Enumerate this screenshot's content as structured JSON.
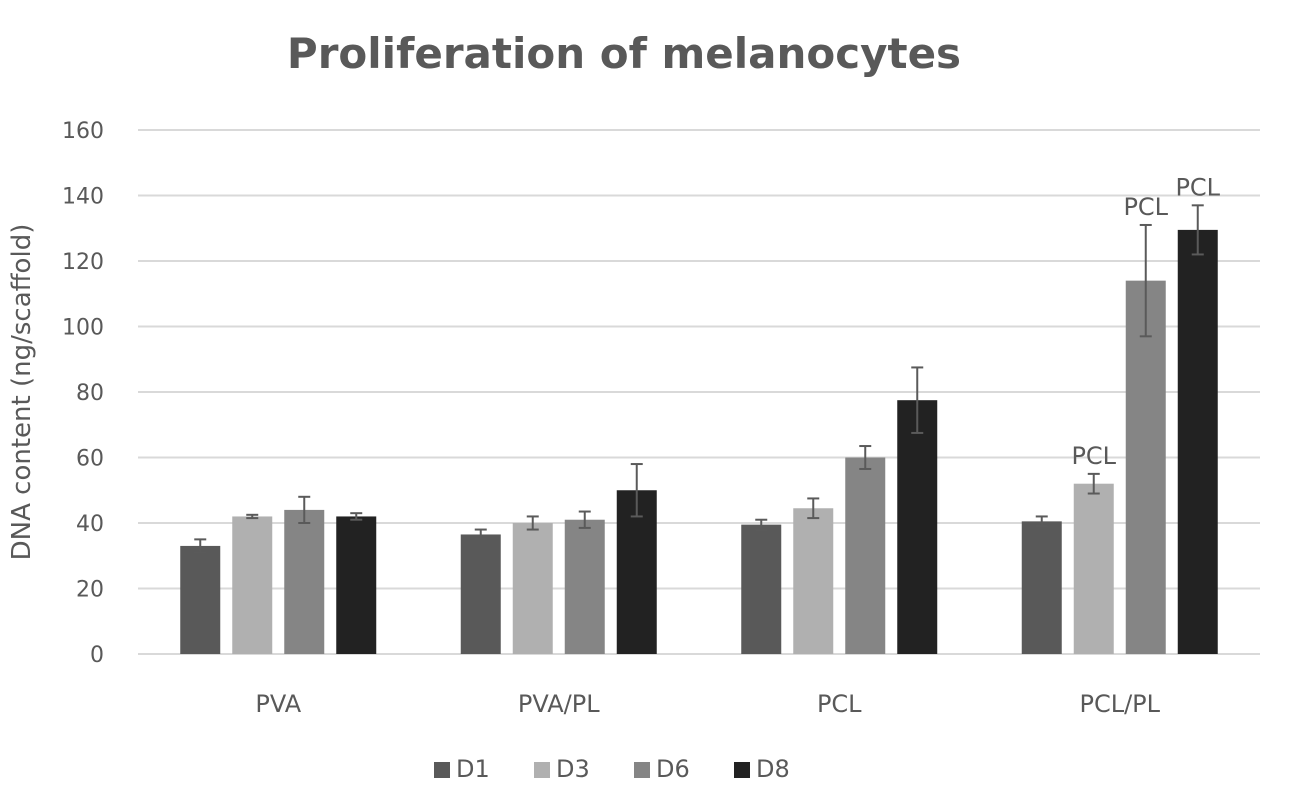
{
  "chart_data": {
    "type": "bar",
    "title": "Proliferation of melanocytes",
    "xlabel": "",
    "ylabel": "DNA content (ng/scaffold)",
    "ylim": [
      0,
      160
    ],
    "yticks": [
      0,
      20,
      40,
      60,
      80,
      100,
      120,
      140,
      160
    ],
    "grid": true,
    "legend_position": "bottom",
    "categories": [
      "PVA",
      "PVA/PL",
      "PCL",
      "PCL/PL"
    ],
    "series": [
      {
        "name": "D1",
        "color": "#595959",
        "values": [
          33,
          36.5,
          39.5,
          40.5
        ],
        "errors": [
          2,
          1.5,
          1.5,
          1.5
        ],
        "annotations": [
          "",
          "",
          "",
          ""
        ]
      },
      {
        "name": "D3",
        "color": "#b0b0b0",
        "values": [
          42,
          40,
          44.5,
          52
        ],
        "errors": [
          0.5,
          2,
          3,
          3
        ],
        "annotations": [
          "",
          "",
          "",
          "PCL"
        ]
      },
      {
        "name": "D6",
        "color": "#858585",
        "values": [
          44,
          41,
          60,
          114
        ],
        "errors": [
          4,
          2.5,
          3.5,
          17
        ],
        "annotations": [
          "",
          "",
          "",
          "PCL"
        ]
      },
      {
        "name": "D8",
        "color": "#222222",
        "values": [
          42,
          50,
          77.5,
          129.5
        ],
        "errors": [
          1,
          8,
          10,
          7.5
        ],
        "annotations": [
          "",
          "",
          "",
          "PCL"
        ]
      }
    ]
  }
}
